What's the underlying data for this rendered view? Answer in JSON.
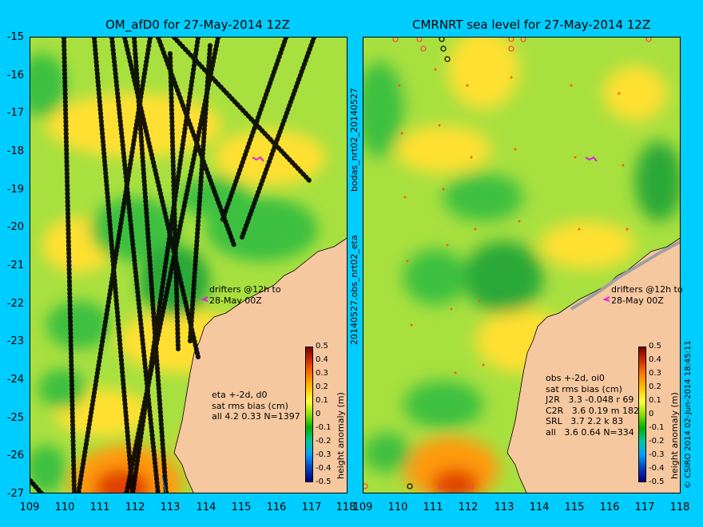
{
  "left_panel": {
    "title": "OM_afD0 for 27-May-2014 12Z",
    "drifter_label": "drifters @12h to\n28-May 00Z",
    "stats": "eta +-2d, d0\nsat rms bias (cm)\nall 4.2 0.33 N=1397"
  },
  "right_panel": {
    "title": "CMRNRT sea level  for 27-May-2014 12Z",
    "drifter_label": "drifters @12h to\n28-May 00Z",
    "stats": "obs +-2d, oi0\nsat rms bias (cm)\nJ2R   3.3 -0.048 r 69\nC2R   3.6 0.19 m 182\nSRL   3.7 2.2 k 83\nall   3.6 0.64 N=334"
  },
  "side_label_top": "bodas_nrt02_20140527",
  "side_label_bottom": "20140527.obs_nrt02_eta",
  "credit": "© CSIRO 2014   02-Jun-2014 18:45:11",
  "lat_ticks": [
    "-15",
    "-16",
    "-17",
    "-18",
    "-19",
    "-20",
    "-21",
    "-22",
    "-23",
    "-24",
    "-25",
    "-26",
    "-27"
  ],
  "lon_ticks_left": [
    "109",
    "110",
    "111",
    "112",
    "113",
    "114",
    "115",
    "116",
    "117",
    "118"
  ],
  "lon_ticks_right": [
    "109",
    "110",
    "111",
    "112",
    "113",
    "114",
    "115",
    "116",
    "117",
    "118"
  ],
  "colorbar": {
    "label": "height anomaly (m)",
    "ticks": [
      "0.5",
      "0.4",
      "0.3",
      "0.2",
      "0.1",
      "0",
      "-0.1",
      "-0.2",
      "-0.3",
      "-0.4",
      "-0.5"
    ]
  },
  "colors": {
    "background": "#00cdff",
    "land": "#f6c8a0",
    "sea_base": "#a8e040",
    "positive": "#ffe030",
    "negative": "#3cc040",
    "track": "#000000"
  }
}
